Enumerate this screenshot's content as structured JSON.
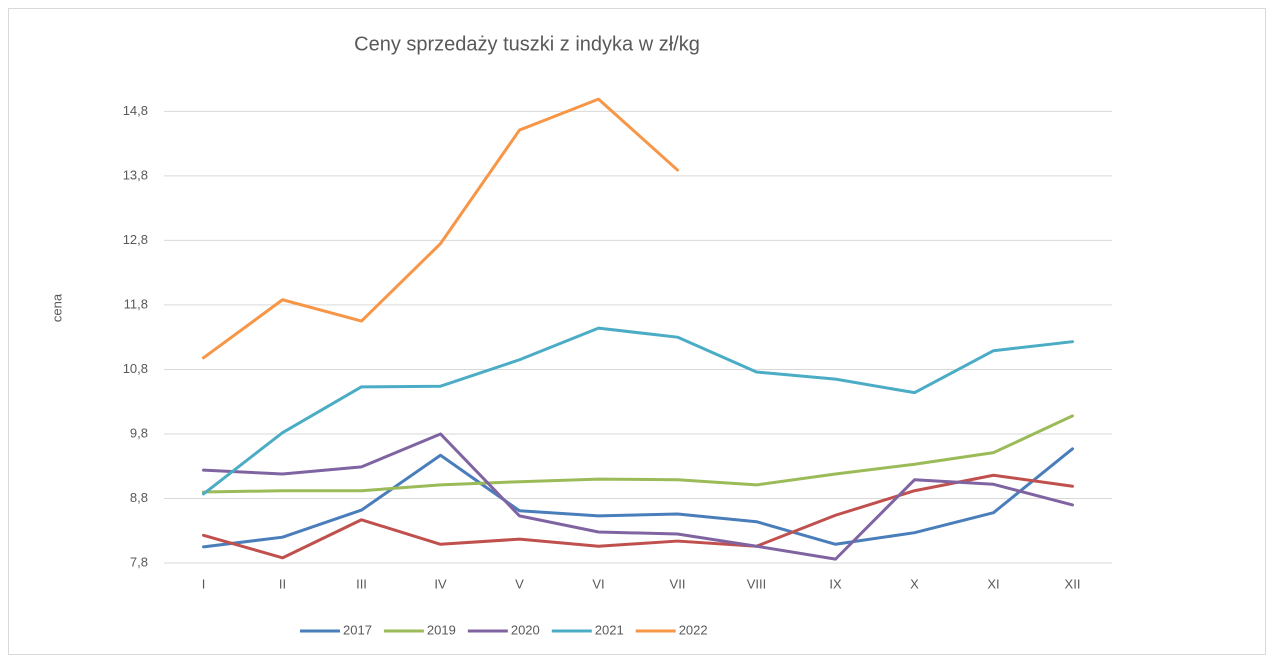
{
  "chart_data": {
    "type": "line",
    "title": "Ceny sprzedaży tuszki z indyka w zł/kg",
    "y_label": "cena",
    "categories": [
      "I",
      "II",
      "III",
      "IV",
      "V",
      "VI",
      "VII",
      "VIII",
      "IX",
      "X",
      "XI",
      "XII"
    ],
    "series": [
      {
        "name": "2017",
        "color": "#4a7ebb",
        "values": [
          8.05,
          8.2,
          8.62,
          9.47,
          8.61,
          8.53,
          8.56,
          8.44,
          8.09,
          8.27,
          8.58,
          9.57
        ]
      },
      {
        "color": "#c0504d",
        "values": [
          8.23,
          7.88,
          8.47,
          8.09,
          8.17,
          8.06,
          8.14,
          8.06,
          8.54,
          8.92,
          9.16,
          8.99
        ]
      },
      {
        "name": "2019",
        "color": "#9bbb59",
        "values": [
          8.9,
          8.92,
          8.92,
          9.01,
          9.06,
          9.1,
          9.09,
          9.01,
          9.18,
          9.33,
          9.51,
          10.08
        ]
      },
      {
        "name": "2020",
        "color": "#8064a2",
        "values": [
          9.24,
          9.18,
          9.29,
          9.8,
          8.53,
          8.28,
          8.25,
          8.06,
          7.86,
          9.09,
          9.02,
          8.7
        ]
      },
      {
        "name": "2021",
        "color": "#4bacc6",
        "values": [
          8.87,
          9.82,
          10.53,
          10.54,
          10.95,
          11.44,
          11.3,
          10.76,
          10.65,
          10.44,
          11.09,
          11.23
        ]
      },
      {
        "name": "2022",
        "color": "#f79646",
        "values": [
          10.98,
          11.88,
          11.55,
          12.75,
          14.51,
          14.99,
          13.89,
          null,
          null,
          null,
          null,
          null
        ]
      }
    ],
    "ylim": [
      7.8,
      15.1
    ],
    "yticks": [
      {
        "value": 7.8,
        "label": "7,8"
      },
      {
        "value": 8.8,
        "label": "8,8"
      },
      {
        "value": 9.8,
        "label": "9,8"
      },
      {
        "value": 10.8,
        "label": "10,8"
      },
      {
        "value": 11.8,
        "label": "11,8"
      },
      {
        "value": 12.8,
        "label": "12,8"
      },
      {
        "value": 13.8,
        "label": "13,8"
      },
      {
        "value": 14.8,
        "label": "14,8"
      }
    ],
    "grid": true,
    "legend": "bottom"
  }
}
